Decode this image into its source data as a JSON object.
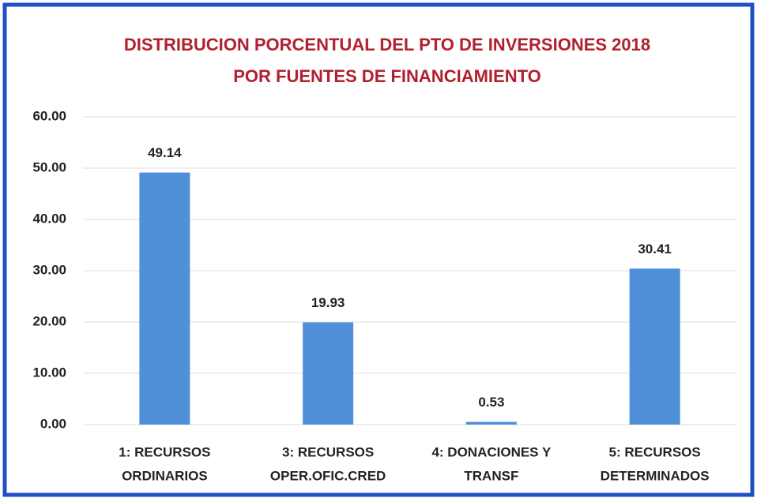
{
  "chart_data": {
    "type": "bar",
    "title": [
      "DISTRIBUCION PORCENTUAL DEL PTO DE INVERSIONES 2018",
      "POR FUENTES DE FINANCIAMIENTO"
    ],
    "categories": [
      [
        "1: RECURSOS",
        "ORDINARIOS"
      ],
      [
        "3: RECURSOS",
        "OPER.OFIC.CRED"
      ],
      [
        "4: DONACIONES Y",
        "TRANSF"
      ],
      [
        "5: RECURSOS",
        "DETERMINADOS"
      ]
    ],
    "values": [
      49.14,
      19.93,
      0.53,
      30.41
    ],
    "color": "#4f90d8",
    "ylim": [
      0,
      60
    ],
    "yticks": [
      {
        "value": 0,
        "label": "0.00"
      },
      {
        "value": 10,
        "label": "10.00"
      },
      {
        "value": 20,
        "label": "20.00"
      },
      {
        "value": 30,
        "label": "30.00"
      },
      {
        "value": 40,
        "label": "40.00"
      },
      {
        "value": 50,
        "label": "50.00"
      },
      {
        "value": 60,
        "label": "60.00"
      }
    ],
    "grid": true
  }
}
